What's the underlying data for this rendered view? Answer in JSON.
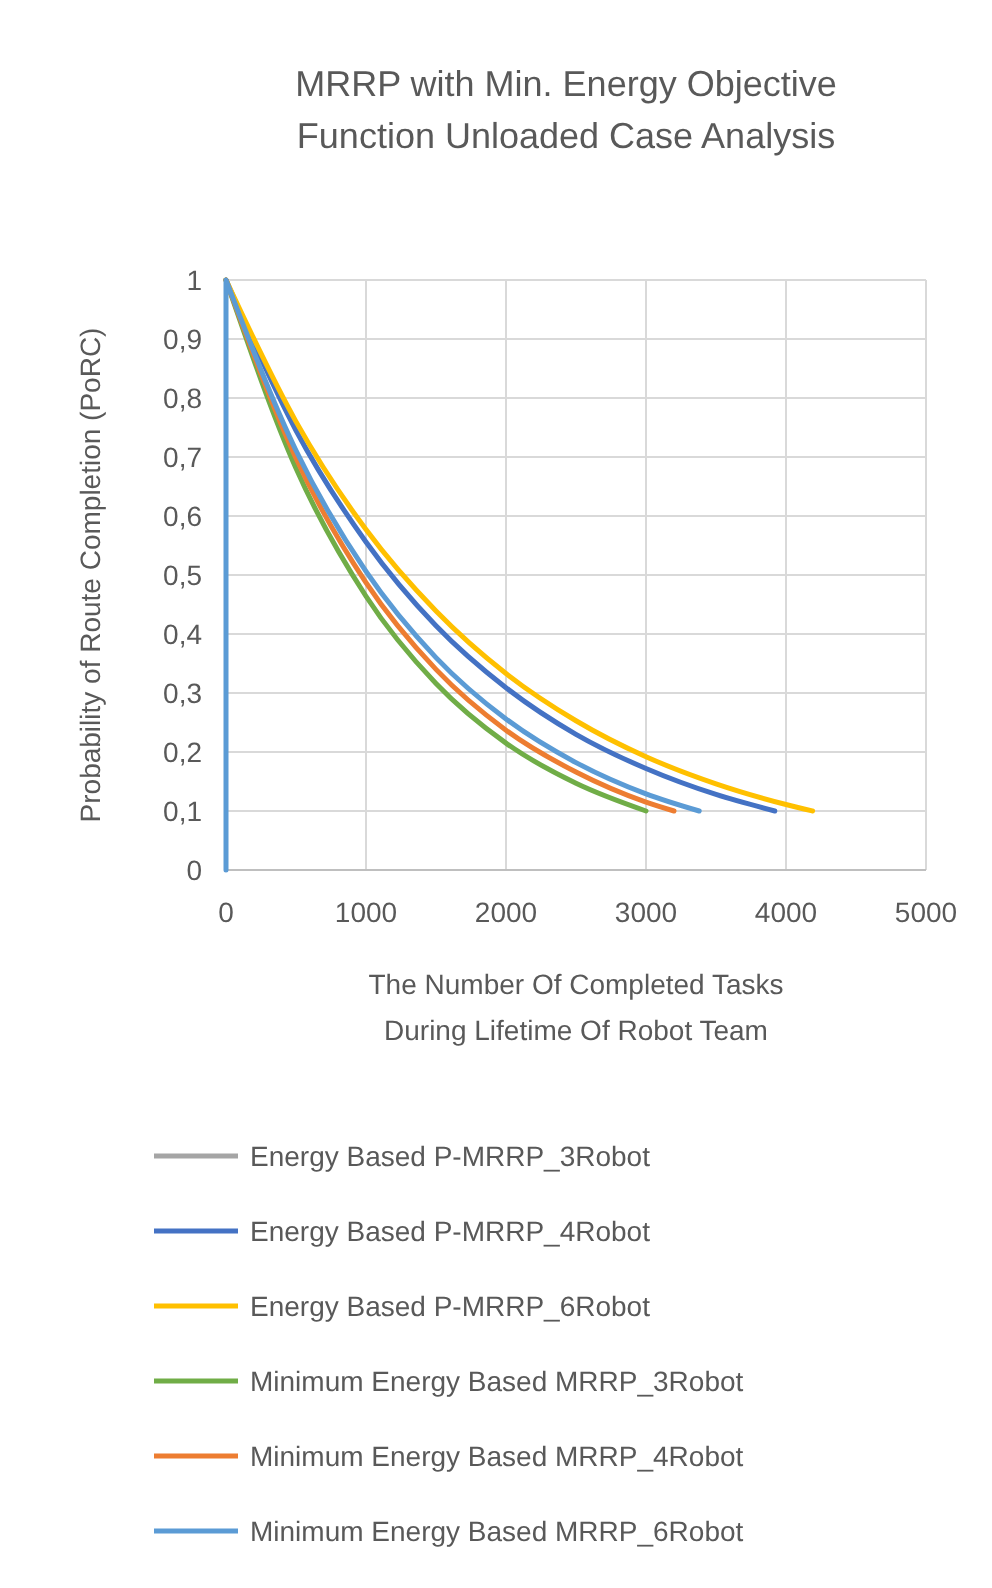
{
  "chart_data": {
    "type": "line",
    "title": "MRRP with Min. Energy Objective Function Unloaded Case Analysis",
    "xlabel": "The Number Of Completed Tasks During Lifetime Of Robot Team",
    "ylabel": "Probability of Route Completion (PoRC)",
    "xlim": [
      0,
      5000
    ],
    "xticks": [
      0,
      1000,
      2000,
      3000,
      4000,
      5000
    ],
    "ylim": [
      0,
      1
    ],
    "yticks": [
      0,
      {
        "value": 0.1,
        "label": "0,1"
      },
      {
        "value": 0.2,
        "label": "0,2"
      },
      {
        "value": 0.3,
        "label": "0,3"
      },
      {
        "value": 0.4,
        "label": "0,4"
      },
      {
        "value": 0.5,
        "label": "0,5"
      },
      {
        "value": 0.6,
        "label": "0,6"
      },
      {
        "value": 0.7,
        "label": "0,7"
      },
      {
        "value": 0.8,
        "label": "0,8"
      },
      {
        "value": 0.9,
        "label": "0,9"
      },
      1
    ],
    "grid": true,
    "legend": "bottom",
    "marker": "none",
    "line_style": "solid",
    "series": [
      {
        "name": "Energy Based P-MRRP_3Robot",
        "color": "#a5a5a5"
      },
      {
        "name": "Energy Based P-MRRP_4Robot",
        "color": "#4472c4",
        "x": [
          0,
          500,
          1000,
          1500,
          2000,
          2500,
          3000,
          3500,
          3920
        ],
        "values": [
          1,
          0.745,
          0.556,
          0.414,
          0.309,
          0.23,
          0.172,
          0.128,
          0.1
        ]
      },
      {
        "name": "Energy Based P-MRRP_6Robot",
        "color": "#ffc000",
        "x": [
          0,
          500,
          1000,
          1500,
          2000,
          2500,
          3000,
          3500,
          4000,
          4190
        ],
        "values": [
          1,
          0.76,
          0.577,
          0.439,
          0.333,
          0.253,
          0.192,
          0.146,
          0.111,
          0.1
        ]
      },
      {
        "name": "Minimum Energy Based MRRP_3Robot",
        "color": "#70ad47",
        "x": [
          0,
          500,
          1000,
          1500,
          2000,
          2500,
          3000
        ],
        "values": [
          1,
          0.681,
          0.464,
          0.316,
          0.215,
          0.147,
          0.1
        ]
      },
      {
        "name": "Minimum Energy Based MRRP_4Robot",
        "color": "#ed7d31",
        "x": [
          0,
          500,
          1000,
          1500,
          2000,
          2500,
          3000,
          3200
        ],
        "values": [
          1,
          0.698,
          0.487,
          0.34,
          0.237,
          0.166,
          0.115,
          0.1
        ]
      },
      {
        "name": "Minimum Energy Based MRRP_6Robot",
        "color": "#5b9bd5",
        "x": [
          0,
          0,
          500,
          1000,
          1500,
          2000,
          2500,
          3000,
          3380
        ],
        "values": [
          0,
          1,
          0.711,
          0.506,
          0.36,
          0.256,
          0.182,
          0.129,
          0.1
        ]
      }
    ]
  }
}
